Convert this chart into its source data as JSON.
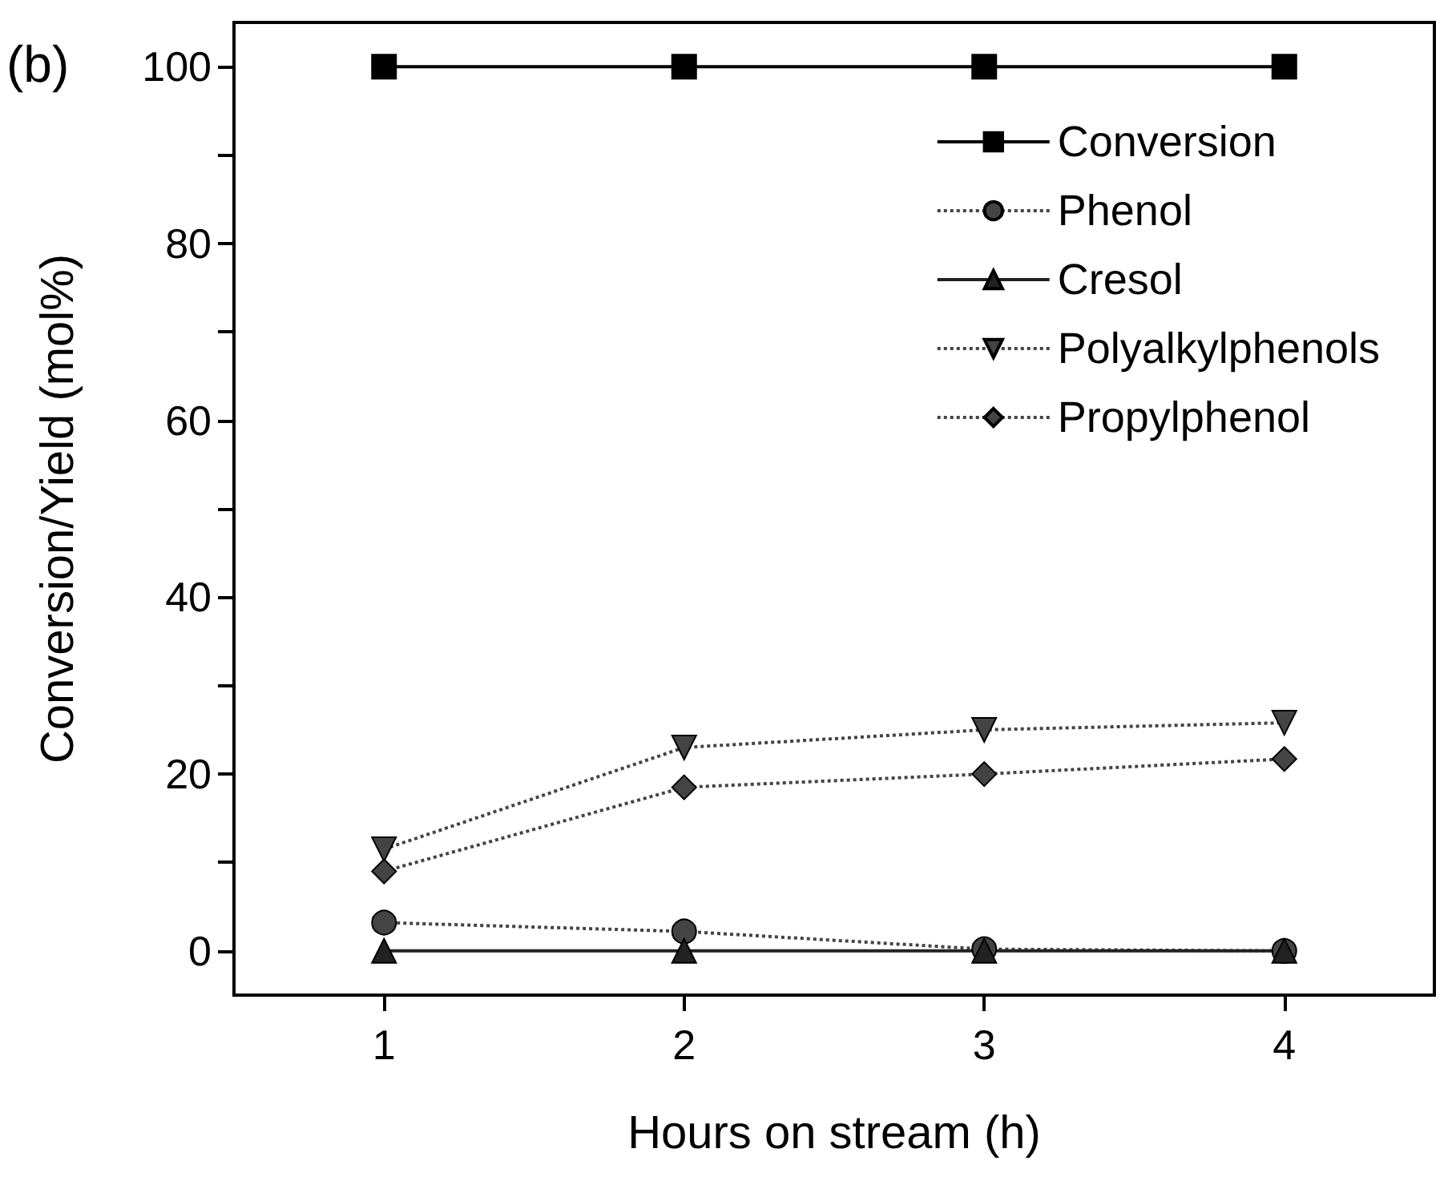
{
  "chart_data": {
    "type": "line",
    "xlabel": "Hours on stream (h)",
    "ylabel": "Conversion/Yield (mol%)",
    "annotations": [
      "(b)"
    ],
    "x": [
      1,
      2,
      3,
      4
    ],
    "xlim": [
      0.5,
      4.5
    ],
    "xticks": [
      1,
      2,
      3,
      4
    ],
    "ylim": [
      -5,
      105
    ],
    "yticks": [
      0,
      {
        "value": 10,
        "label": null
      },
      20,
      {
        "value": 30,
        "label": null
      },
      40,
      {
        "value": 50,
        "label": null
      },
      60,
      {
        "value": 70,
        "label": null
      },
      80,
      {
        "value": 90,
        "label": null
      },
      100
    ],
    "grid": false,
    "legend": "top right",
    "series": [
      {
        "name": "Conversion",
        "color": "#000000",
        "marker": "square",
        "line_style": "solid",
        "values": [
          100,
          100,
          100,
          100
        ]
      },
      {
        "name": "Phenol",
        "color": "#444444",
        "marker": "circle",
        "line_style": "dotted",
        "values": [
          3.2,
          2.2,
          0.2,
          0
        ]
      },
      {
        "name": "Cresol",
        "color": "#222222",
        "marker": "triangle",
        "line_style": "solid",
        "values": [
          0,
          0,
          0,
          0
        ]
      },
      {
        "name": "Polyalkylphenols",
        "color": "#444444",
        "marker": "triangle-down",
        "line_style": "dotted",
        "values": [
          11.5,
          23,
          25,
          25.8
        ]
      },
      {
        "name": "Propylphenol",
        "color": "#444444",
        "marker": "diamond",
        "line_style": "dotted",
        "values": [
          9,
          18.5,
          20,
          21.7
        ]
      }
    ]
  }
}
